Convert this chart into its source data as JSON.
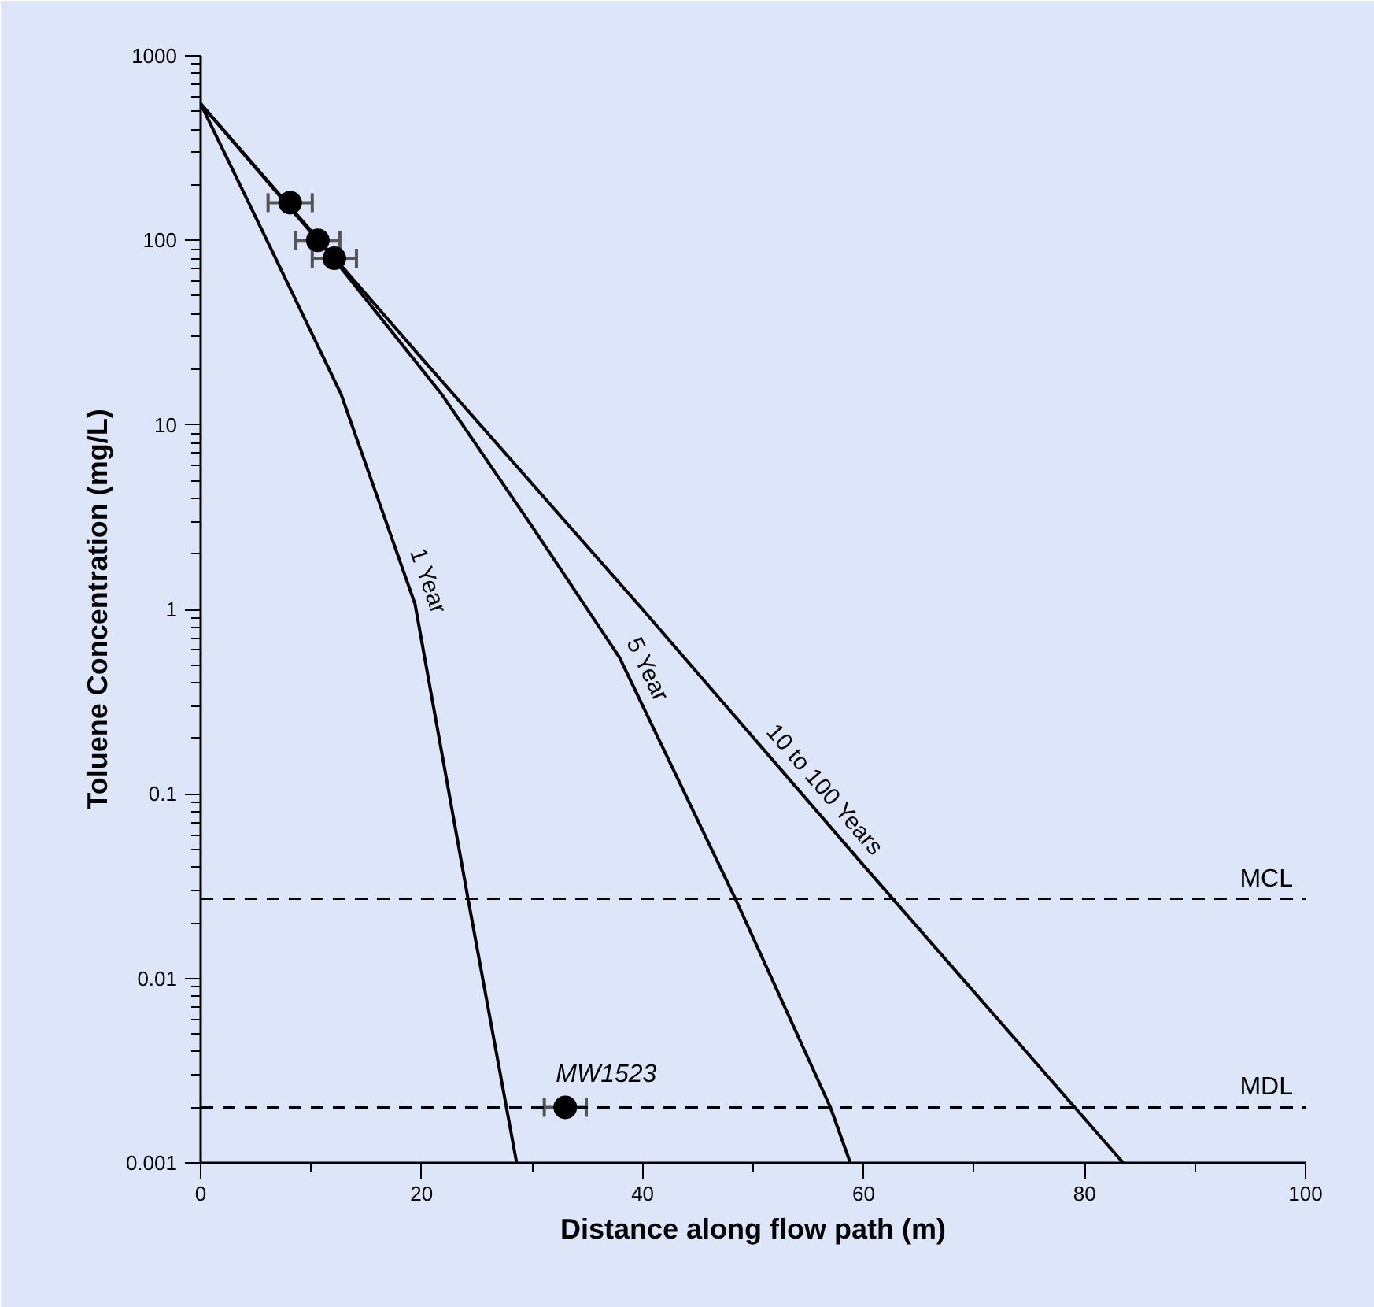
{
  "chart_data": {
    "type": "line",
    "xlabel": "Distance along flow path (m)",
    "ylabel": "Toluene Concentration (mg/L)",
    "log": "y",
    "xlim": [
      0,
      100
    ],
    "ylim": [
      0.001,
      1000
    ],
    "xticks": [
      0,
      20,
      40,
      60,
      80,
      100
    ],
    "yticks": [
      0.001,
      0.01,
      0.1,
      1,
      10,
      100,
      1000
    ],
    "line_style": "solid",
    "series": [
      {
        "name": "1 Year",
        "color": "#000000",
        "x": [
          0,
          6,
          12.7,
          19.4,
          24.2,
          28.6
        ],
        "values": [
          550,
          100,
          14.7,
          1.07,
          0.027,
          0.001
        ]
      },
      {
        "name": "5 Year",
        "color": "#000000",
        "x": [
          0,
          12,
          21.8,
          29.9,
          37.9,
          48.4,
          57,
          58.8
        ],
        "values": [
          550,
          80,
          14.7,
          2.87,
          0.55,
          0.027,
          0.002,
          0.001
        ]
      },
      {
        "name": "10 to 100 Years",
        "color": "#000000",
        "x": [
          0,
          20,
          40,
          60,
          83.5
        ],
        "values": [
          550,
          23,
          1,
          0.041,
          0.001
        ]
      },
      {
        "type": "scatter",
        "marker": "circle",
        "color": "#000000",
        "x": [
          8.1,
          10.6,
          12.1
        ],
        "values": [
          160,
          100,
          80
        ],
        "xerrors": [
          2,
          2,
          2
        ]
      },
      {
        "name": "MW1523",
        "type": "scatter",
        "marker": "circle",
        "color": "#000000",
        "x": [
          33
        ],
        "values": [
          0.002
        ],
        "xerrors": [
          1.9
        ]
      }
    ],
    "ref_lines": [
      {
        "axis": "y",
        "value": 0.027,
        "label": "MCL",
        "line_style": "dashed",
        "color": "#000000"
      },
      {
        "axis": "y",
        "value": 0.002,
        "label": "MDL",
        "line_style": "dashed",
        "color": "#000000"
      }
    ]
  }
}
